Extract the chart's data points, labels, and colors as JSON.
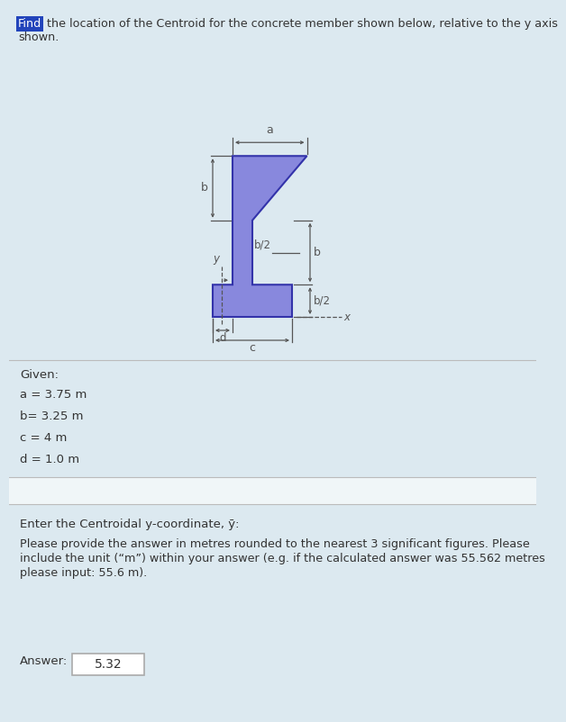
{
  "bg_color": "#dce9f0",
  "shape_color": "#8888dd",
  "shape_edge_color": "#3333aa",
  "title_find": "Find",
  "title_rest": " the location of the Centroid for the concrete member shown below, relative to the y axis",
  "title_line2": "shown.",
  "given_header": "Given:",
  "params": [
    "a = 3.75 m",
    "b= 3.25 m",
    "c = 4 m",
    "d = 1.0 m"
  ],
  "question": "Enter the Centroidal y-coordinate, ȳ:",
  "instructions_line1": "Please provide the answer in metres rounded to the nearest 3 significant figures. Please",
  "instructions_line2": "include the unit (“m”) within your answer (e.g. if the calculated answer was 55.562 metres",
  "instructions_line3": "please input: 55.6 m).",
  "answer_label": "Answer:",
  "answer_value": "5.32",
  "highlight_color": "#2244bb",
  "text_color": "#333333",
  "dim_color": "#555555",
  "white": "#ffffff",
  "divider_color": "#bbbbbb",
  "white_band_color": "#f0f6f8"
}
